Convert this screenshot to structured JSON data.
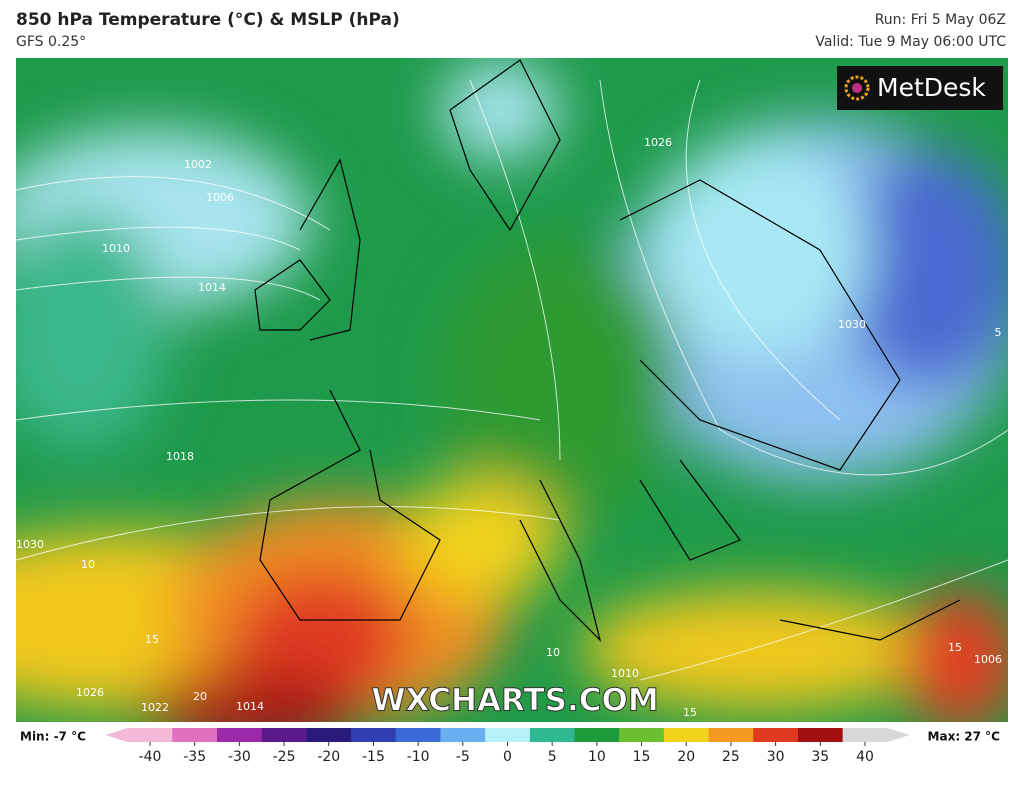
{
  "header": {
    "title": "850 hPa Temperature (°C) & MSLP (hPa)",
    "model": "GFS 0.25°",
    "run": "Run: Fri 5 May 06Z",
    "valid": "Valid: Tue 9 May 06:00 UTC"
  },
  "logo": "MetDesk",
  "watermark": "WXCHARTS.COM",
  "map": {
    "isobar_labels": [
      "1006",
      "1010",
      "1014",
      "1018",
      "1022",
      "1026",
      "1030",
      "1026",
      "1030",
      "1002",
      "10",
      "15",
      "20",
      "1014",
      "10",
      "15",
      "1006",
      "15",
      "5",
      "1010"
    ]
  },
  "colorbar": {
    "min_label": "Min: -7 °C",
    "max_label": "Max: 27 °C",
    "ticks": [
      -40,
      -35,
      -30,
      -25,
      -20,
      -15,
      -10,
      -5,
      0,
      5,
      10,
      15,
      20,
      25,
      30,
      35,
      40
    ],
    "colors": [
      "#f4b8d8",
      "#e070c0",
      "#9a2aa8",
      "#5a1a8a",
      "#2a1a7a",
      "#3040b0",
      "#3a6ad8",
      "#6ab0f0",
      "#b8f0f8",
      "#2fb890",
      "#1f9a3a",
      "#6ac030",
      "#f2d21a",
      "#f59a20",
      "#e03a20",
      "#a01010",
      "#d8d8d8"
    ]
  }
}
